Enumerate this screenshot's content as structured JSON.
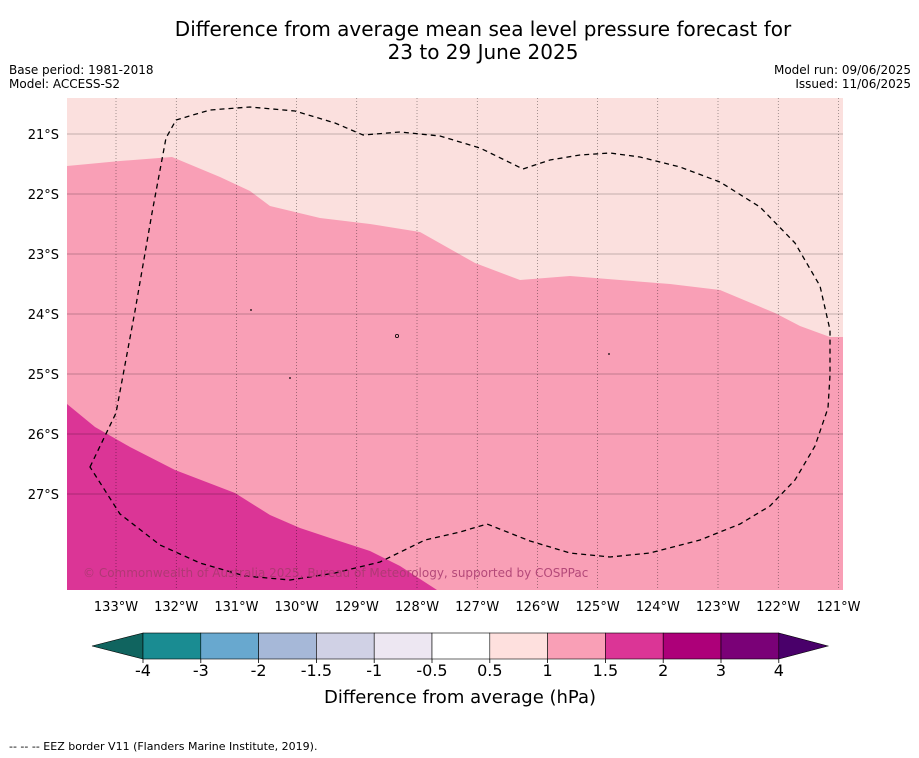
{
  "title_line1": "Difference from average mean sea level pressure forecast for",
  "title_line2": "23 to 29 June 2025",
  "meta": {
    "base_period": "Base period: 1981-2018",
    "model": "Model: ACCESS-S2",
    "model_run": "Model run: 09/06/2025",
    "issued": "Issued: 11/06/2025"
  },
  "map": {
    "lon_labels": [
      "133°W",
      "132°W",
      "131°W",
      "130°W",
      "129°W",
      "128°W",
      "127°W",
      "126°W",
      "125°W",
      "124°W",
      "123°W",
      "122°W",
      "121°W"
    ],
    "lat_labels": [
      "21°S",
      "22°S",
      "23°S",
      "24°S",
      "25°S",
      "26°S",
      "27°S"
    ],
    "copyright": "© Commonwealth of Australia 2025, Bureau of Meteorology, supported by COSPPac",
    "region_colors": {
      "band_0_5_to_1": "#fbe0de",
      "band_1_to_1_5": "#f99fb6",
      "band_1_5_to_2": "#db3596"
    }
  },
  "colorbar": {
    "ticks": [
      "-4",
      "-3",
      "-2",
      "-1.5",
      "-1",
      "-0.5",
      "0.5",
      "1",
      "1.5",
      "2",
      "3",
      "4"
    ],
    "colors": [
      "#1a8c92",
      "#68a8cf",
      "#a6b8d8",
      "#d0d1e5",
      "#ede7f2",
      "#ffffff",
      "#fee0de",
      "#f99fb6",
      "#db3596",
      "#ad0079",
      "#7a0177"
    ],
    "low_extend_color": "#10645f",
    "high_extend_color": "#49006a",
    "label": "Difference from average (hPa)"
  },
  "footer": "--  --  -- EEZ border V11 (Flanders Marine Institute, 2019)."
}
